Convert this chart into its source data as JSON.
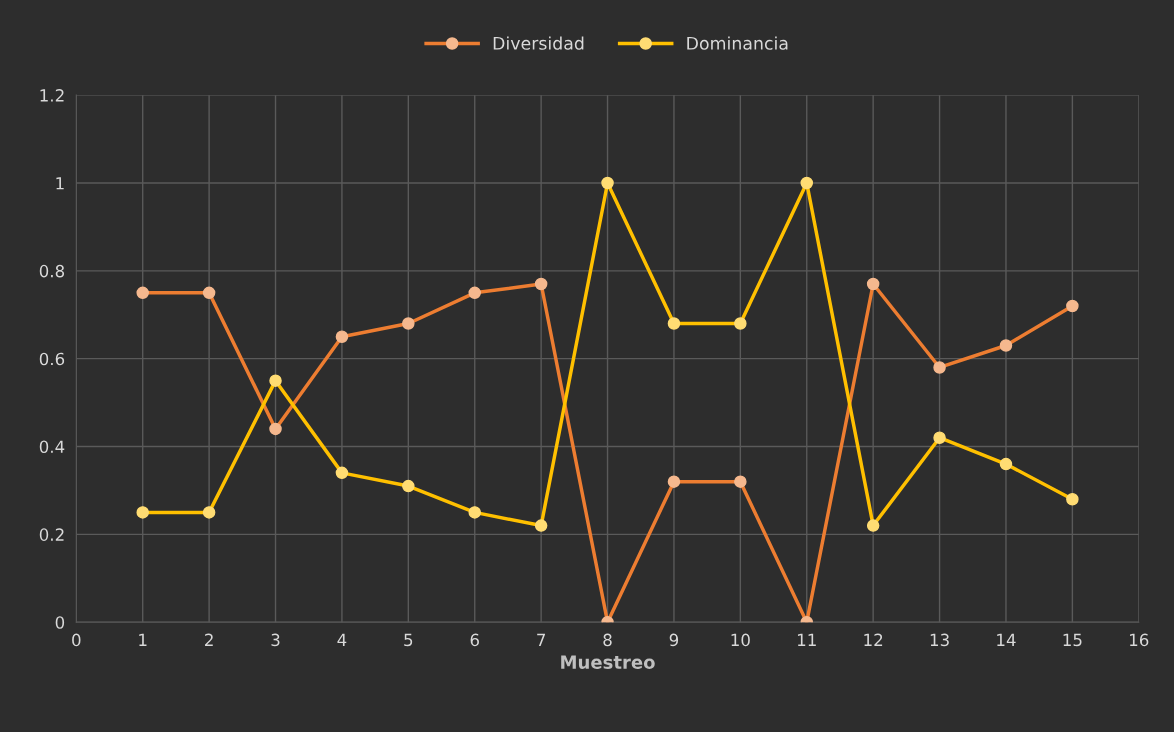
{
  "chart_data": {
    "type": "line",
    "xlabel": "Muestreo",
    "x": [
      1,
      2,
      3,
      4,
      5,
      6,
      7,
      8,
      9,
      10,
      11,
      12,
      13,
      14,
      15
    ],
    "series": [
      {
        "name": "Diversidad",
        "color": "#ed7d31",
        "values": [
          0.75,
          0.75,
          0.44,
          0.65,
          0.68,
          0.75,
          0.77,
          0,
          0.32,
          0.32,
          0,
          0.77,
          0.58,
          0.63,
          0.72
        ]
      },
      {
        "name": "Dominancia",
        "color": "#ffc000",
        "values": [
          0.25,
          0.25,
          0.55,
          0.34,
          0.31,
          0.25,
          0.22,
          1,
          0.68,
          0.68,
          1,
          0.22,
          0.42,
          0.36,
          0.28
        ]
      }
    ],
    "xlim": [
      0,
      16
    ],
    "xticks": [
      0,
      1,
      2,
      3,
      4,
      5,
      6,
      7,
      8,
      9,
      10,
      11,
      12,
      13,
      14,
      15,
      16
    ],
    "ylim": [
      0,
      1.2
    ],
    "yticks": [
      0,
      0.2,
      0.4,
      0.6,
      0.8,
      1,
      1.2
    ],
    "grid": true,
    "legend": "top",
    "marker": "circle",
    "line_style": "solid"
  }
}
